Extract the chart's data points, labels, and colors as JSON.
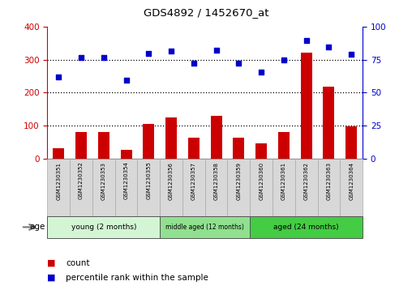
{
  "title": "GDS4892 / 1452670_at",
  "samples": [
    "GSM1230351",
    "GSM1230352",
    "GSM1230353",
    "GSM1230354",
    "GSM1230355",
    "GSM1230356",
    "GSM1230357",
    "GSM1230358",
    "GSM1230359",
    "GSM1230360",
    "GSM1230361",
    "GSM1230362",
    "GSM1230363",
    "GSM1230364"
  ],
  "counts": [
    32,
    82,
    80,
    28,
    105,
    125,
    63,
    130,
    63,
    46,
    82,
    320,
    218,
    98
  ],
  "percentiles": [
    248,
    305,
    305,
    238,
    318,
    325,
    288,
    328,
    288,
    263,
    300,
    358,
    338,
    315
  ],
  "bar_color": "#cc0000",
  "dot_color": "#0000cc",
  "ylim_left": [
    0,
    400
  ],
  "ylim_right": [
    0,
    100
  ],
  "yticks_left": [
    0,
    100,
    200,
    300,
    400
  ],
  "yticks_right": [
    0,
    25,
    50,
    75,
    100
  ],
  "groups": [
    {
      "label": "young (2 months)",
      "start": 0,
      "end": 5,
      "color": "#d4f5d4"
    },
    {
      "label": "middle aged (12 months)",
      "start": 5,
      "end": 9,
      "color": "#90e090"
    },
    {
      "label": "aged (24 months)",
      "start": 9,
      "end": 14,
      "color": "#44cc44"
    }
  ],
  "age_label": "age",
  "legend_count": "count",
  "legend_percentile": "percentile rank within the sample",
  "grid_yticks": [
    100,
    200,
    300
  ],
  "bar_width": 0.5,
  "axes_color_left": "#cc0000",
  "axes_color_right": "#0000cc",
  "cell_bg": "#d8d8d8",
  "cell_edge": "#aaaaaa"
}
